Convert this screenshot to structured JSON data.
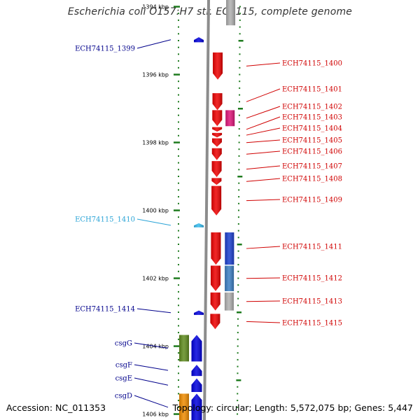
{
  "title": "Escherichia coli O157:H7 str. EC4115, complete genome",
  "footer": {
    "accession": "Accession: NC_011353",
    "summary": "Topology: circular; Length: 5,572,075 bp; Genes: 5,447"
  },
  "colors": {
    "backbone": "#8c8c8c",
    "ticks": "#1e7b1e",
    "plus_strand_label": "#d00000",
    "minus_strand_label": "#00008b",
    "minus_light_label": "#29a3d6"
  },
  "scale": [
    {
      "label": "1394 kbp",
      "kbp": 1394
    },
    {
      "label": "1396 kbp",
      "kbp": 1396
    },
    {
      "label": "1398 kbp",
      "kbp": 1398
    },
    {
      "label": "1400 kbp",
      "kbp": 1400
    },
    {
      "label": "1402 kbp",
      "kbp": 1402
    },
    {
      "label": "1404 kbp",
      "kbp": 1404
    },
    {
      "label": "1406 kbp",
      "kbp": 1406
    }
  ],
  "plus_genes": [
    {
      "label": "ECH74115_1400",
      "start_kbp": 1395.35,
      "end_kbp": 1396.15,
      "color": "#ee0000"
    },
    {
      "label": "ECH74115_1401",
      "start_kbp": 1396.55,
      "end_kbp": 1397.05,
      "color": "#ee0000"
    },
    {
      "label": "ECH74115_1402",
      "start_kbp": 1397.05,
      "end_kbp": 1397.52,
      "color": "#ee0000"
    },
    {
      "label": "ECH74115_1403",
      "start_kbp": 1397.55,
      "end_kbp": 1397.68,
      "color": "#ee0000"
    },
    {
      "label": "ECH74115_1404",
      "start_kbp": 1397.72,
      "end_kbp": 1397.85,
      "color": "#ee0000"
    },
    {
      "label": "ECH74115_1405",
      "start_kbp": 1397.88,
      "end_kbp": 1398.13,
      "color": "#ee0000"
    },
    {
      "label": "ECH74115_1406",
      "start_kbp": 1398.17,
      "end_kbp": 1398.52,
      "color": "#ee0000"
    },
    {
      "label": "ECH74115_1407",
      "start_kbp": 1398.55,
      "end_kbp": 1399.02,
      "color": "#ee0000"
    },
    {
      "label": "ECH74115_1408",
      "start_kbp": 1399.05,
      "end_kbp": 1399.25,
      "color": "#ee0000"
    },
    {
      "label": "ECH74115_1409",
      "start_kbp": 1399.28,
      "end_kbp": 1400.15,
      "color": "#ee0000"
    },
    {
      "label": "ECH74115_1411",
      "start_kbp": 1400.65,
      "end_kbp": 1401.6,
      "color": "#ee0000"
    },
    {
      "label": "ECH74115_1412",
      "start_kbp": 1401.63,
      "end_kbp": 1402.38,
      "color": "#ee0000"
    },
    {
      "label": "ECH74115_1413",
      "start_kbp": 1402.42,
      "end_kbp": 1402.95,
      "color": "#ee0000"
    },
    {
      "label": "ECH74115_1415",
      "start_kbp": 1403.05,
      "end_kbp": 1403.5,
      "color": "#ee0000"
    }
  ],
  "minus_genes": [
    {
      "label": "ECH74115_1399",
      "start_kbp": 1394.9,
      "end_kbp": 1395.05,
      "color": "#0000dd"
    },
    {
      "label": "ECH74115_1410",
      "start_kbp": 1400.38,
      "end_kbp": 1400.5,
      "color": "#33bbee"
    },
    {
      "label": "ECH74115_1414",
      "start_kbp": 1402.95,
      "end_kbp": 1403.08,
      "color": "#0000dd"
    },
    {
      "label": "csgG",
      "start_kbp": 1403.67,
      "end_kbp": 1404.45,
      "color": "#0000dd"
    },
    {
      "label": "csgF",
      "start_kbp": 1404.55,
      "end_kbp": 1404.88,
      "color": "#0000dd"
    },
    {
      "label": "csgE",
      "start_kbp": 1404.95,
      "end_kbp": 1405.35,
      "color": "#0000dd"
    },
    {
      "label": "csgD",
      "start_kbp": 1405.4,
      "end_kbp": 1406.2,
      "color": "#0000dd"
    }
  ],
  "feature_tracks": [
    {
      "name": "grey-feature",
      "side": "plus",
      "start_kbp": 1393.6,
      "end_kbp": 1394.55,
      "color": "#b0b0b0"
    },
    {
      "name": "magenta-feature",
      "side": "plus",
      "start_kbp": 1397.05,
      "end_kbp": 1397.52,
      "color": "#e0157a"
    },
    {
      "name": "blue-feature",
      "side": "plus",
      "start_kbp": 1400.65,
      "end_kbp": 1401.6,
      "color": "#1a3fcf"
    },
    {
      "name": "steelblue-feature",
      "side": "plus",
      "start_kbp": 1401.63,
      "end_kbp": 1402.38,
      "color": "#3b7fc4"
    },
    {
      "name": "grey-feature",
      "side": "plus",
      "start_kbp": 1402.42,
      "end_kbp": 1402.95,
      "color": "#b0b0b0"
    },
    {
      "name": "olive-feature",
      "side": "minus",
      "start_kbp": 1403.67,
      "end_kbp": 1404.45,
      "color": "#5f8c1e"
    },
    {
      "name": "orange-feature",
      "side": "minus",
      "start_kbp": 1405.4,
      "end_kbp": 1406.2,
      "color": "#f08c00"
    }
  ]
}
